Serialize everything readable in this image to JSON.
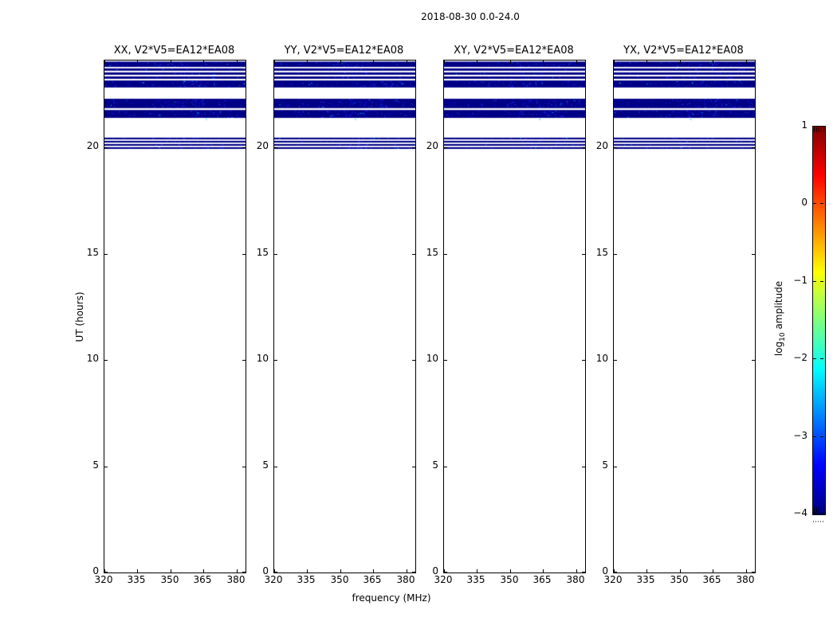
{
  "chart_data": {
    "type": "heatmap",
    "title": "2018-08-30 0.0-24.0",
    "xlabel": "frequency (MHz)",
    "ylabel": "UT (hours)",
    "xlim": [
      320,
      384
    ],
    "ylim": [
      0,
      24.1
    ],
    "xticks": [
      320,
      335,
      350,
      365,
      380
    ],
    "yticks": [
      0,
      5,
      10,
      15,
      20
    ],
    "grid": false,
    "panels": [
      {
        "title": "XX, V2*V5=EA12*EA08"
      },
      {
        "title": "YY, V2*V5=EA12*EA08"
      },
      {
        "title": "XY, V2*V5=EA12*EA08"
      },
      {
        "title": "YX, V2*V5=EA12*EA08"
      }
    ],
    "data_bands_ut": [
      [
        23.8,
        24.05
      ],
      [
        23.62,
        23.73
      ],
      [
        23.43,
        23.54
      ],
      [
        23.24,
        23.35
      ],
      [
        22.83,
        23.16
      ],
      [
        21.86,
        22.3
      ],
      [
        21.4,
        21.77
      ],
      [
        20.39,
        20.47
      ],
      [
        20.24,
        20.32
      ],
      [
        20.09,
        20.17
      ],
      [
        19.94,
        20.02
      ]
    ],
    "band_amplitude_log10": -4,
    "colorbar": {
      "label": "log10 amplitude",
      "ticks": [
        1,
        0,
        -1,
        -2,
        -3,
        -4
      ],
      "tick_labels": [
        "1",
        "0",
        "−1",
        "−2",
        "−3",
        "−4"
      ],
      "vmin": -4,
      "vmax": 1,
      "colormap": "jet",
      "position": "right"
    }
  },
  "colorbar_label": {
    "prefix": "log",
    "sub": "10",
    "suffix": " amplitude"
  },
  "colors": {
    "background": "#ffffff",
    "axis": "#000000",
    "band": "#000085",
    "noise_blue": "#0d0dd2",
    "noise_bright": "#2b2bff",
    "noise_mid": "#0077ff",
    "noise_cyan": "#00e0ff",
    "jet_stops": [
      "#7f0000",
      "#ff0000",
      "#ffff00",
      "#00ffff",
      "#0000ff",
      "#000080"
    ]
  }
}
